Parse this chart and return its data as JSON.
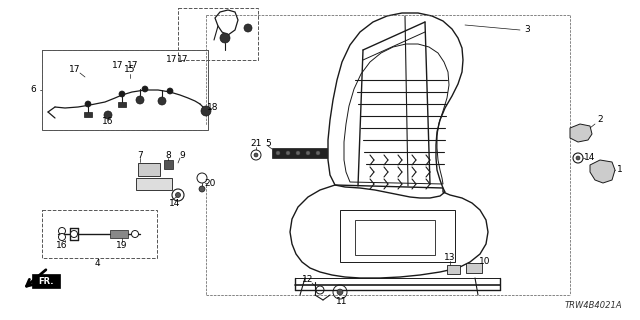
{
  "background_color": "#ffffff",
  "diagram_code": "TRW4B4021A",
  "line_color": "#1a1a1a",
  "label_fontsize": 6.5,
  "fig_width": 6.4,
  "fig_height": 3.2,
  "dpi": 100
}
